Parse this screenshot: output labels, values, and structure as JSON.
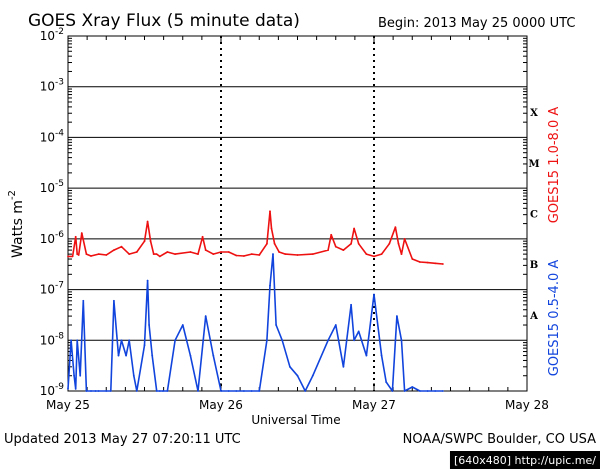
{
  "chart_data": {
    "type": "line",
    "title": "GOES Xray Flux (5 minute data)",
    "begin_label": "Begin:  2013 May 25 0000 UTC",
    "xlabel": "Universal Time",
    "ylabel": "Watts m",
    "ylabel_superscript": "-2",
    "x_ticks": [
      "May 25",
      "May 26",
      "May 27",
      "May 28"
    ],
    "xlim": [
      0,
      3
    ],
    "x_unit": "days since 2013 May 25 0000 UTC",
    "yscale": "log",
    "ylim": [
      1e-09,
      0.01
    ],
    "y_ticks": [
      {
        "base": "10",
        "exp": "-9",
        "value": 1e-09
      },
      {
        "base": "10",
        "exp": "-8",
        "value": 1e-08
      },
      {
        "base": "10",
        "exp": "-7",
        "value": 1e-07
      },
      {
        "base": "10",
        "exp": "-6",
        "value": 1e-06
      },
      {
        "base": "10",
        "exp": "-5",
        "value": 1e-05
      },
      {
        "base": "10",
        "exp": "-4",
        "value": 0.0001
      },
      {
        "base": "10",
        "exp": "-3",
        "value": 0.001
      },
      {
        "base": "10",
        "exp": "-2",
        "value": 0.01
      }
    ],
    "flare_classes": [
      {
        "label": "X",
        "value": 0.000316
      },
      {
        "label": "M",
        "value": 3.16e-05
      },
      {
        "label": "C",
        "value": 3.16e-06
      },
      {
        "label": "B",
        "value": 3.16e-07
      },
      {
        "label": "A",
        "value": 3.16e-08
      }
    ],
    "grid": "horizontal lines at each decade; dotted vertical lines at day boundaries",
    "series": [
      {
        "name": "GOES15 1.0-8.0 A",
        "color": "#ee1111",
        "x": [
          0.0,
          0.03,
          0.05,
          0.06,
          0.07,
          0.09,
          0.12,
          0.15,
          0.2,
          0.25,
          0.3,
          0.35,
          0.4,
          0.45,
          0.5,
          0.52,
          0.54,
          0.56,
          0.58,
          0.6,
          0.65,
          0.7,
          0.8,
          0.85,
          0.88,
          0.9,
          0.95,
          1.0,
          1.05,
          1.1,
          1.15,
          1.2,
          1.25,
          1.3,
          1.32,
          1.33,
          1.35,
          1.38,
          1.42,
          1.5,
          1.6,
          1.7,
          1.72,
          1.75,
          1.8,
          1.85,
          1.87,
          1.9,
          1.95,
          2.0,
          2.05,
          2.1,
          2.14,
          2.16,
          2.18,
          2.2,
          2.25,
          2.3,
          2.35,
          2.4,
          2.45
        ],
        "y": [
          4.5e-07,
          4.5e-07,
          1.1e-06,
          5e-07,
          4.8e-07,
          1.3e-06,
          5e-07,
          4.6e-07,
          5e-07,
          4.8e-07,
          6e-07,
          7e-07,
          5e-07,
          5.5e-07,
          9e-07,
          2.2e-06,
          9e-07,
          5e-07,
          5e-07,
          4.5e-07,
          5.5e-07,
          5e-07,
          5.5e-07,
          5e-07,
          1.1e-06,
          6e-07,
          5e-07,
          5.5e-07,
          5.5e-07,
          4.7e-07,
          4.6e-07,
          5e-07,
          4.8e-07,
          8e-07,
          3.5e-06,
          1.6e-06,
          8e-07,
          5.5e-07,
          5e-07,
          4.8e-07,
          5e-07,
          6e-07,
          1.2e-06,
          7e-07,
          6e-07,
          8e-07,
          1.6e-06,
          8e-07,
          5e-07,
          4.5e-07,
          5e-07,
          8e-07,
          1.7e-06,
          8e-07,
          5e-07,
          1e-06,
          4e-07,
          3.5e-07,
          3.4e-07,
          3.3e-07,
          3.2e-07
        ]
      },
      {
        "name": "GOES15 0.5-4.0 A",
        "color": "#1144dd",
        "x": [
          0.0,
          0.02,
          0.04,
          0.05,
          0.06,
          0.08,
          0.1,
          0.12,
          0.15,
          0.18,
          0.2,
          0.25,
          0.28,
          0.3,
          0.33,
          0.35,
          0.38,
          0.4,
          0.43,
          0.45,
          0.5,
          0.52,
          0.53,
          0.55,
          0.58,
          0.6,
          0.62,
          0.65,
          0.7,
          0.75,
          0.8,
          0.85,
          0.9,
          0.95,
          1.0,
          1.05,
          1.1,
          1.15,
          1.2,
          1.25,
          1.3,
          1.32,
          1.34,
          1.36,
          1.4,
          1.45,
          1.5,
          1.55,
          1.6,
          1.7,
          1.75,
          1.8,
          1.85,
          1.87,
          1.9,
          1.95,
          2.0,
          2.05,
          2.08,
          2.12,
          2.15,
          2.18,
          2.2,
          2.25,
          2.3,
          2.35,
          2.4,
          2.45
        ],
        "y": [
          1.1e-09,
          1e-08,
          2e-09,
          1.1e-09,
          1e-08,
          2e-09,
          6e-08,
          1e-09,
          1e-09,
          1e-09,
          1e-09,
          1e-09,
          1e-09,
          6e-08,
          5e-09,
          1e-08,
          5e-09,
          1e-08,
          2e-09,
          1e-09,
          8e-09,
          1.5e-07,
          2e-08,
          5e-09,
          1e-09,
          1e-09,
          1e-09,
          1e-09,
          1e-08,
          2e-08,
          5e-09,
          1e-09,
          3e-08,
          5e-09,
          1e-09,
          1e-09,
          1e-09,
          1e-09,
          1e-09,
          1e-09,
          1e-08,
          1.2e-07,
          5e-07,
          2e-08,
          1e-08,
          3e-09,
          2e-09,
          1e-09,
          2e-09,
          1e-08,
          2e-08,
          3e-09,
          5e-08,
          1e-08,
          1.5e-08,
          5e-09,
          8e-08,
          5e-09,
          1.5e-09,
          1e-09,
          3e-08,
          1e-08,
          1e-09,
          1.2e-09,
          1e-09,
          1e-09,
          1e-09,
          1e-09
        ]
      }
    ]
  },
  "footer": {
    "updated": "Updated 2013 May 27 07:20:11 UTC",
    "source": "NOAA/SWPC Boulder, CO USA"
  },
  "watermark": "[640x480] http://upic.me/",
  "colors": {
    "red_series": "#ee1111",
    "blue_series": "#1144dd",
    "watermark_bg": "#000000",
    "watermark_text": "#ffffff"
  }
}
